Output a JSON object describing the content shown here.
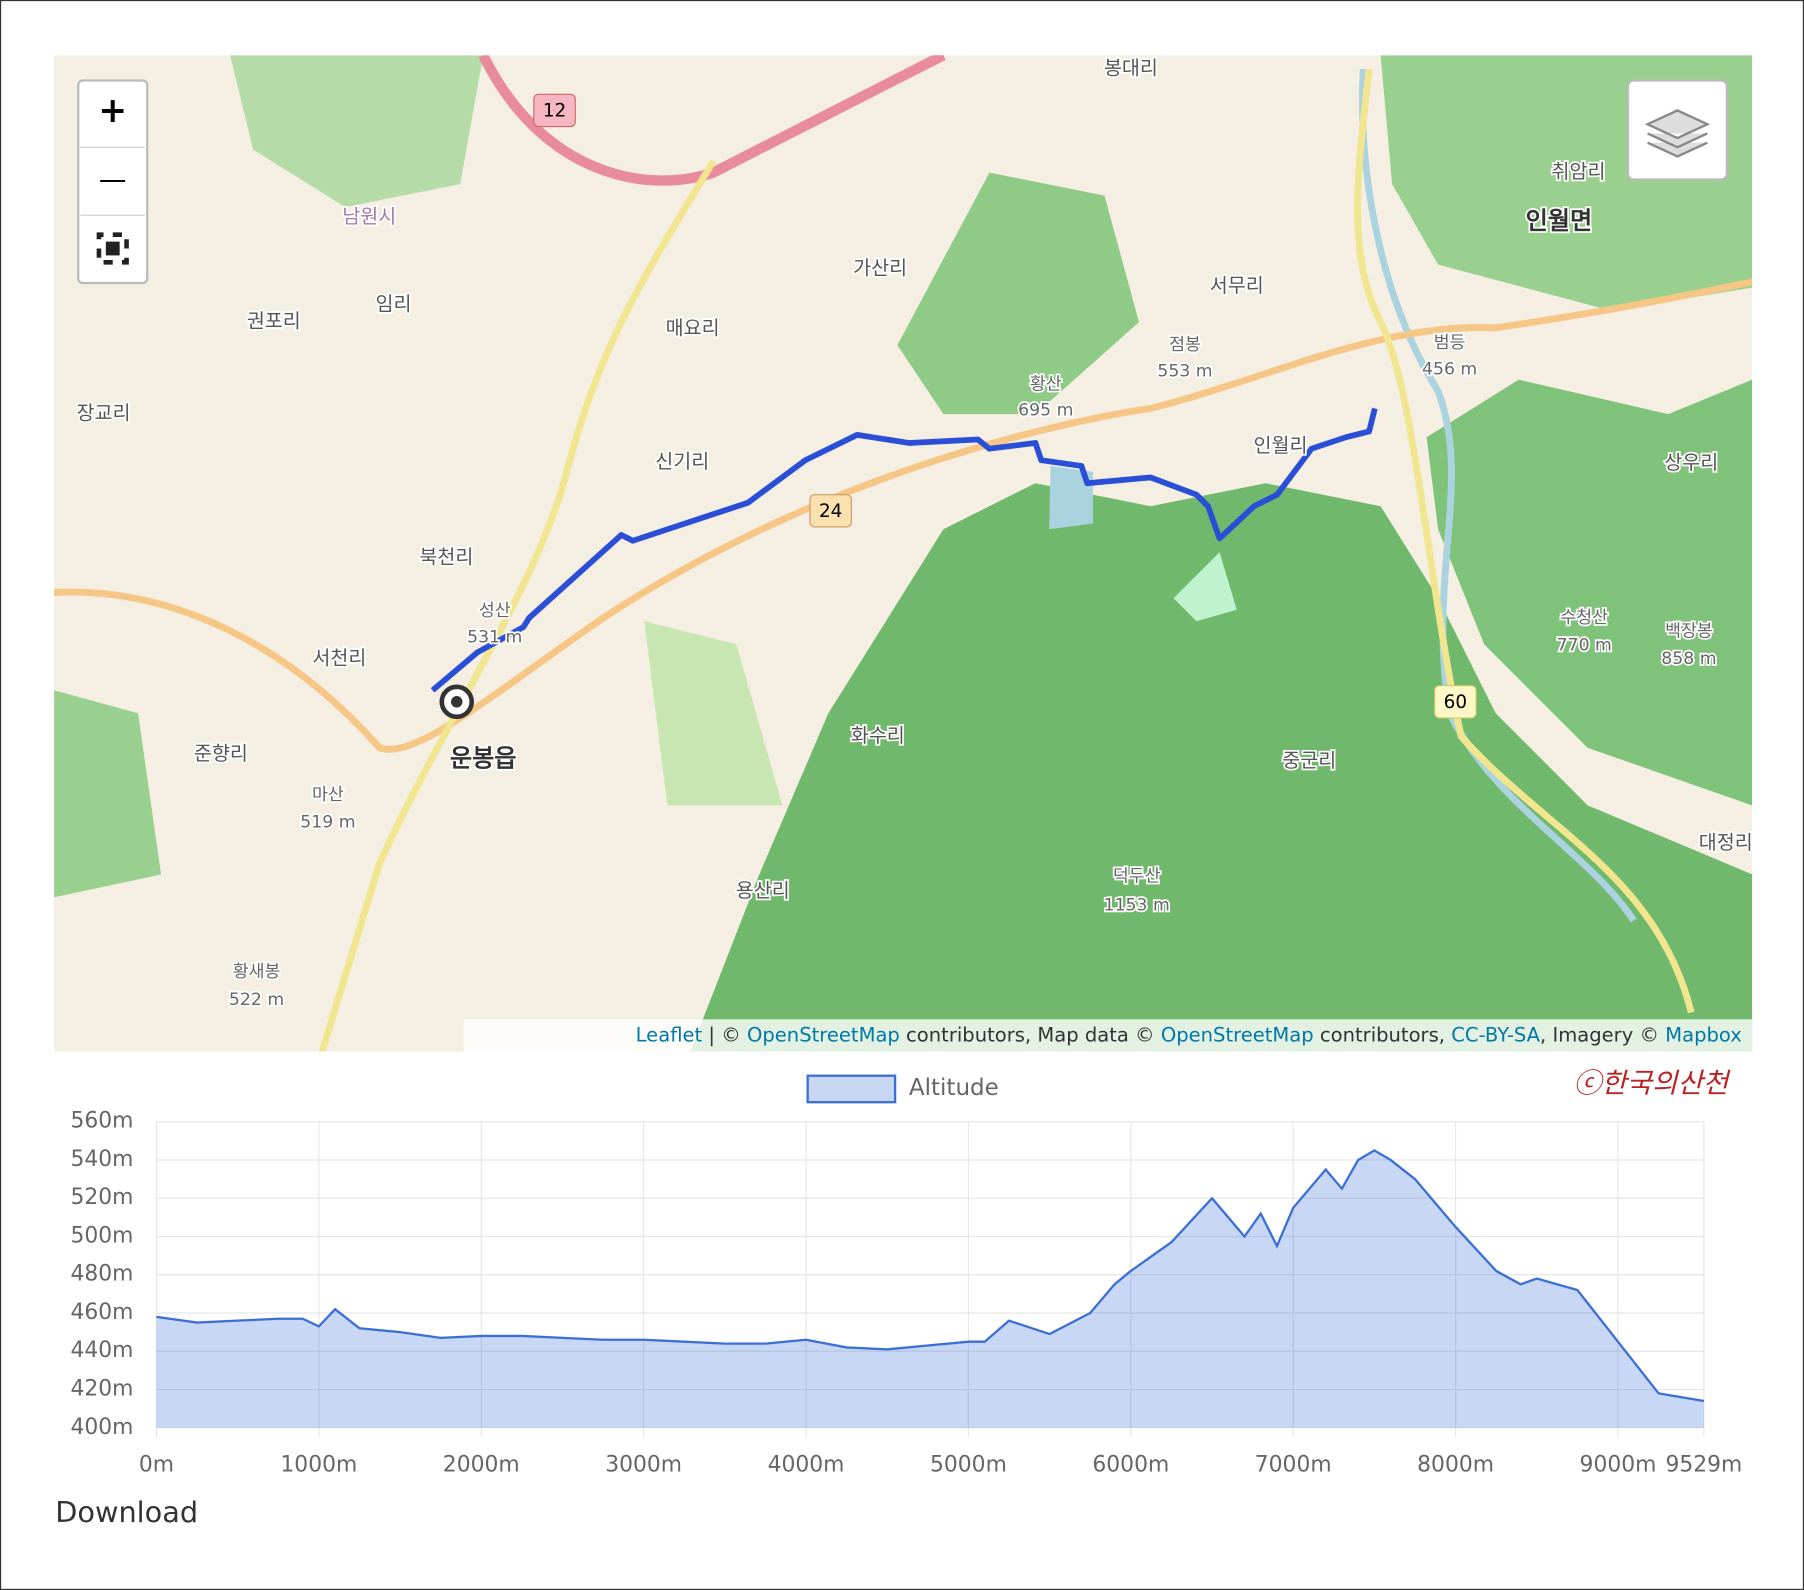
{
  "map": {
    "controls": {
      "zoom_in": "+",
      "zoom_out": "—"
    },
    "labels": [
      "봉대리",
      "취암리",
      "인월면",
      "가산리",
      "서무리",
      "권포리",
      "임리",
      "매요리",
      "장교리",
      "황산",
      "695 m",
      "점봉",
      "553 m",
      "범등",
      "456 m",
      "인월리",
      "상우리",
      "신기리",
      "북천리",
      "성산",
      "531 m",
      "서천리",
      "수청산",
      "770 m",
      "백장봉",
      "858 m",
      "화수리",
      "중군리",
      "준향리",
      "운봉읍",
      "마산",
      "519 m",
      "대정리",
      "덕두산",
      "1153 m",
      "용산리",
      "황새봉",
      "522 m",
      "남원시"
    ],
    "roads": [
      "12",
      "24",
      "60"
    ],
    "attribution": [
      "Leaflet",
      " | © ",
      "OpenStreetMap",
      " contributors, Map data © ",
      "OpenStreetMap",
      " contributors, ",
      "CC-BY-SA",
      ", Imagery © ",
      "Mapbox"
    ]
  },
  "watermark": "ⓒ한국의산천",
  "chart_data": {
    "type": "area",
    "x": [
      0,
      250,
      500,
      750,
      900,
      1000,
      1100,
      1250,
      1500,
      1750,
      2000,
      2250,
      2500,
      2750,
      3000,
      3250,
      3500,
      3750,
      4000,
      4250,
      4500,
      4750,
      5000,
      5100,
      5250,
      5500,
      5750,
      5900,
      6000,
      6250,
      6500,
      6700,
      6800,
      6900,
      7000,
      7200,
      7300,
      7400,
      7500,
      7600,
      7750,
      8000,
      8250,
      8400,
      8500,
      8750,
      9000,
      9250,
      9529
    ],
    "series": [
      {
        "name": "Altitude",
        "color": "#3b6fd6",
        "values": [
          458,
          455,
          456,
          457,
          457,
          453,
          462,
          452,
          450,
          447,
          448,
          448,
          447,
          446,
          446,
          445,
          444,
          444,
          446,
          442,
          441,
          443,
          445,
          445,
          456,
          449,
          460,
          475,
          482,
          497,
          520,
          500,
          512,
          495,
          515,
          535,
          525,
          540,
          545,
          540,
          530,
          505,
          482,
          475,
          478,
          472,
          445,
          418,
          414
        ]
      }
    ],
    "xlim": [
      0,
      9529
    ],
    "xticks": [
      {
        "value": 0,
        "label": "0m"
      },
      {
        "value": 1000,
        "label": "1000m"
      },
      {
        "value": 2000,
        "label": "2000m"
      },
      {
        "value": 3000,
        "label": "3000m"
      },
      {
        "value": 4000,
        "label": "4000m"
      },
      {
        "value": 5000,
        "label": "5000m"
      },
      {
        "value": 6000,
        "label": "6000m"
      },
      {
        "value": 7000,
        "label": "7000m"
      },
      {
        "value": 8000,
        "label": "8000m"
      },
      {
        "value": 9000,
        "label": "9000m"
      },
      {
        "value": 9529,
        "label": "9529m"
      }
    ],
    "ylim": [
      400,
      560
    ],
    "yticks": [
      {
        "value": 400,
        "label": "400m"
      },
      {
        "value": 420,
        "label": "420m"
      },
      {
        "value": 440,
        "label": "440m"
      },
      {
        "value": 460,
        "label": "460m"
      },
      {
        "value": 480,
        "label": "480m"
      },
      {
        "value": 500,
        "label": "500m"
      },
      {
        "value": 520,
        "label": "520m"
      },
      {
        "value": 540,
        "label": "540m"
      },
      {
        "value": 560,
        "label": "560m"
      }
    ],
    "grid": true
  },
  "download": "Download"
}
